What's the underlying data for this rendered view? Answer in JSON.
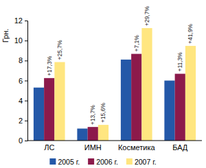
{
  "chart_data": {
    "type": "bar",
    "y_label": "Грн.",
    "categories": [
      "ЛС",
      "ИМН",
      "Косметика",
      "БАД"
    ],
    "series": [
      {
        "name": "2005 г.",
        "color": "#2458a8",
        "values": [
          5.3,
          1.2,
          8.1,
          6.0
        ]
      },
      {
        "name": "2006 г.",
        "color": "#8c1a4b",
        "values": [
          6.25,
          1.36,
          8.67,
          6.68
        ],
        "annotations": [
          "+17,3%",
          "+13,7%",
          "+7,1%",
          "+11,3%"
        ]
      },
      {
        "name": "2007 г.",
        "color": "#ffe680",
        "values": [
          7.85,
          1.57,
          11.25,
          9.47
        ],
        "annotations": [
          "+25,7%",
          "+15,6%",
          "+29,7%",
          "+41,9%"
        ]
      }
    ],
    "ylim": [
      0,
      12
    ],
    "yticks": [
      0,
      2,
      4,
      6,
      8,
      10,
      12
    ],
    "grid": false,
    "legend": "bottom"
  }
}
